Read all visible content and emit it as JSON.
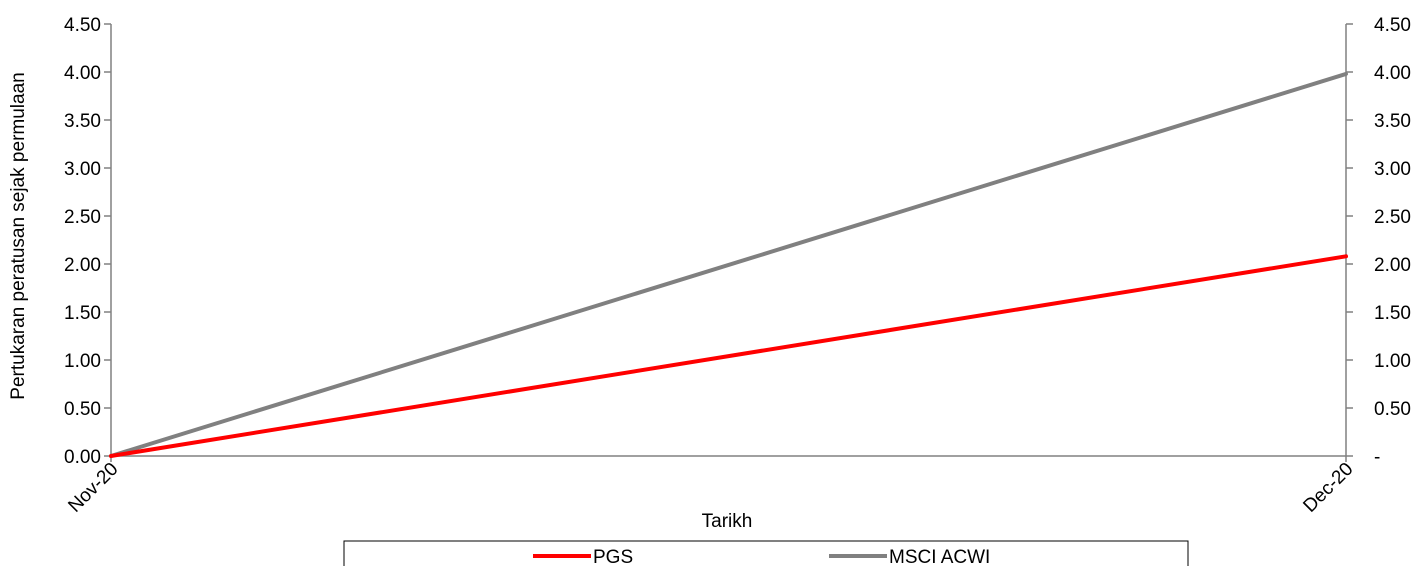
{
  "chart_data": {
    "type": "line",
    "categories": [
      "Nov-20",
      "Dec-20"
    ],
    "series": [
      {
        "name": "PGS",
        "values": [
          0.0,
          2.08
        ],
        "color": "#ff0000"
      },
      {
        "name": "MSCI ACWI",
        "values": [
          0.0,
          3.98
        ],
        "color": "#808080"
      }
    ],
    "xlabel": "Tarikh",
    "ylabel": "Pertukaran peratusan sejak permulaan",
    "ylim": [
      0,
      4.5
    ],
    "y_ticks": [
      "0.00",
      "0.50",
      "1.00",
      "1.50",
      "2.00",
      "2.50",
      "3.00",
      "3.50",
      "4.00",
      "4.50"
    ],
    "y2_ticks": [
      "-",
      "0.50",
      "1.00",
      "1.50",
      "2.00",
      "2.50",
      "3.00",
      "3.50",
      "4.00",
      "4.50"
    ],
    "grid": false,
    "legend_position": "bottom"
  }
}
